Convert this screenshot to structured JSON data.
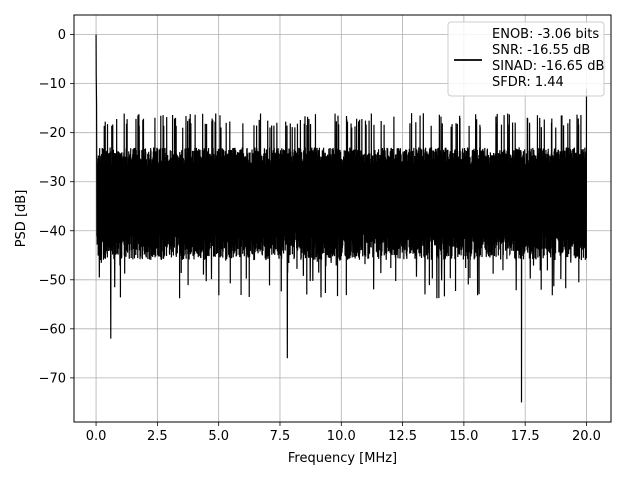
{
  "chart_data": {
    "type": "line",
    "xlabel": "Frequency [MHz]",
    "ylabel": "PSD [dB]",
    "xlim": [
      -0.9,
      21.0
    ],
    "ylim": [
      -79,
      4
    ],
    "x_ticks": [
      0.0,
      2.5,
      5.0,
      7.5,
      10.0,
      12.5,
      15.0,
      17.5,
      20.0
    ],
    "x_tick_labels": [
      "0.0",
      "2.5",
      "5.0",
      "7.5",
      "10.0",
      "12.5",
      "15.0",
      "17.5",
      "20.0"
    ],
    "y_ticks": [
      0,
      -10,
      -20,
      -30,
      -40,
      -50,
      -60,
      -70
    ],
    "y_tick_labels": [
      "0",
      "−10",
      "−20",
      "−30",
      "−40",
      "−50",
      "−60",
      "−70"
    ],
    "grid": true,
    "legend_position": "top-right",
    "series": [
      {
        "name": "ENOB: -3.06 bits\nSNR: -16.55 dB\nSINAD: -16.65 dB\nSFDR: 1.44",
        "color": "#000000",
        "description_points": [
          {
            "x": 0.0,
            "y": 0
          },
          {
            "x": 0.02,
            "y": -14
          },
          {
            "x": 0.05,
            "y": -32
          },
          {
            "x": 0.12,
            "y": -43
          },
          {
            "x": 0.6,
            "y": -62
          },
          {
            "x": 7.8,
            "y": -66
          },
          {
            "x": 17.35,
            "y": -75
          },
          {
            "x": 20.0,
            "y": -11
          }
        ],
        "noise_band_top": -25,
        "noise_band_bottom": -40
      }
    ],
    "legend_lines": [
      "ENOB: -3.06 bits",
      "SNR: -16.55 dB",
      "SINAD: -16.65 dB",
      "SFDR: 1.44"
    ]
  }
}
